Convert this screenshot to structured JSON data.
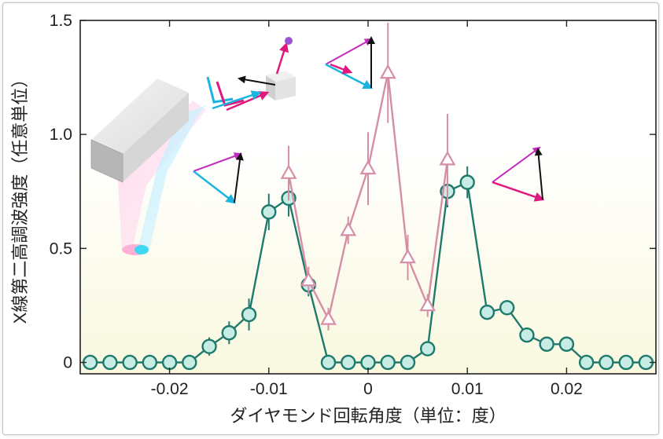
{
  "chart_data": {
    "type": "line",
    "title": "",
    "xlabel": "ダイヤモンド回転角度（単位：度）",
    "ylabel": "X線第二高調波強度（任意単位）",
    "xlim": [
      -0.029,
      0.029
    ],
    "ylim": [
      -0.05,
      1.5
    ],
    "xticks": [
      -0.02,
      -0.01,
      0,
      0.01,
      0.02
    ],
    "xtick_labels": [
      "-0.02",
      "-0.01",
      "0",
      "0.01",
      "0.02"
    ],
    "yticks": [
      0,
      0.5,
      1.0,
      1.5
    ],
    "ytick_labels": [
      "0",
      "0.5",
      "1.0",
      "1.5"
    ],
    "grid": false,
    "background": "gradient pale yellow at bottom",
    "series": [
      {
        "marker": "circle",
        "color": "#1f7a6d",
        "fill": "#c7ece4",
        "points": [
          {
            "x": -0.028,
            "y": 0.0
          },
          {
            "x": -0.026,
            "y": 0.0
          },
          {
            "x": -0.024,
            "y": 0.0
          },
          {
            "x": -0.022,
            "y": 0.0
          },
          {
            "x": -0.02,
            "y": 0.0
          },
          {
            "x": -0.018,
            "y": 0.0
          },
          {
            "x": -0.016,
            "y": 0.07,
            "err": 0.04
          },
          {
            "x": -0.014,
            "y": 0.13,
            "err": 0.05
          },
          {
            "x": -0.012,
            "y": 0.21,
            "err": 0.07
          },
          {
            "x": -0.01,
            "y": 0.66,
            "err": 0.08
          },
          {
            "x": -0.008,
            "y": 0.72,
            "err": 0.08
          },
          {
            "x": -0.006,
            "y": 0.34,
            "err": 0.05
          },
          {
            "x": -0.004,
            "y": 0.0
          },
          {
            "x": -0.002,
            "y": 0.0
          },
          {
            "x": 0.0,
            "y": 0.0
          },
          {
            "x": 0.002,
            "y": 0.0
          },
          {
            "x": 0.004,
            "y": 0.0
          },
          {
            "x": 0.006,
            "y": 0.06,
            "err": 0.03
          },
          {
            "x": 0.008,
            "y": 0.75,
            "err": 0.07
          },
          {
            "x": 0.01,
            "y": 0.79,
            "err": 0.07
          },
          {
            "x": 0.012,
            "y": 0.22,
            "err": 0.03
          },
          {
            "x": 0.014,
            "y": 0.24,
            "err": 0.03
          },
          {
            "x": 0.016,
            "y": 0.12,
            "err": 0.03
          },
          {
            "x": 0.018,
            "y": 0.08,
            "err": 0.03
          },
          {
            "x": 0.02,
            "y": 0.08,
            "err": 0.03
          },
          {
            "x": 0.022,
            "y": 0.0
          },
          {
            "x": 0.024,
            "y": 0.0
          },
          {
            "x": 0.026,
            "y": 0.0
          },
          {
            "x": 0.028,
            "y": 0.0
          }
        ]
      },
      {
        "marker": "triangle",
        "color": "#d48fa6",
        "fill": "#ffffff",
        "points": [
          {
            "x": -0.008,
            "y": 0.83,
            "err": 0.12
          },
          {
            "x": -0.006,
            "y": 0.36,
            "err": 0.06
          },
          {
            "x": -0.004,
            "y": 0.19,
            "err": 0.05
          },
          {
            "x": -0.002,
            "y": 0.58,
            "err": 0.06
          },
          {
            "x": 0.0,
            "y": 0.85,
            "err": 0.16
          },
          {
            "x": 0.002,
            "y": 1.27,
            "err": 0.22
          },
          {
            "x": 0.004,
            "y": 0.46,
            "err": 0.1
          },
          {
            "x": 0.006,
            "y": 0.25,
            "err": 0.05
          },
          {
            "x": 0.008,
            "y": 0.89,
            "err": 0.2
          }
        ]
      }
    ]
  },
  "illustration": {
    "colors": {
      "pink": "#e0187f",
      "cyan": "#19b5e0",
      "black": "#111111",
      "magenta": "#c22bbd",
      "dot": "#9a52d6"
    }
  }
}
